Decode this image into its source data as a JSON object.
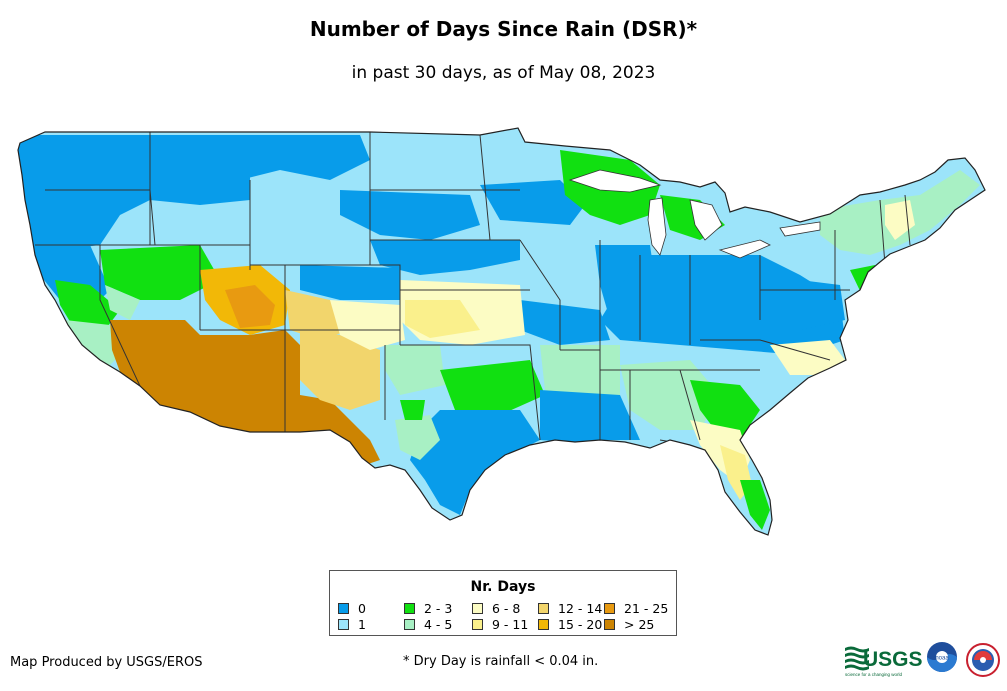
{
  "title": "Number of Days Since Rain (DSR)*",
  "subtitle": "in past 30 days, as of May 08, 2023",
  "legend": {
    "title": "Nr. Days",
    "items": [
      {
        "label": "0",
        "color": "#089cea"
      },
      {
        "label": "1",
        "color": "#9ce4fa"
      },
      {
        "label": "2 - 3",
        "color": "#11e011"
      },
      {
        "label": "4 - 5",
        "color": "#a8f0c4"
      },
      {
        "label": "6 - 8",
        "color": "#fcfcc4"
      },
      {
        "label": "9 - 11",
        "color": "#faf08c"
      },
      {
        "label": "12 - 14",
        "color": "#f2d56c"
      },
      {
        "label": "15 - 20",
        "color": "#f2b807"
      },
      {
        "label": "21 - 25",
        "color": "#e89a11"
      },
      {
        "label": "> 25",
        "color": "#cc8402"
      }
    ]
  },
  "credit": "Map Produced by USGS/EROS",
  "footnote": "* Dry Day is rainfall < 0.04 in.",
  "logos": {
    "usgs_text": "USGS",
    "usgs_tagline": "science for a changing world",
    "noaa_text": "noaa"
  },
  "colors": {
    "water": "#ffffff",
    "border": "#333333"
  }
}
